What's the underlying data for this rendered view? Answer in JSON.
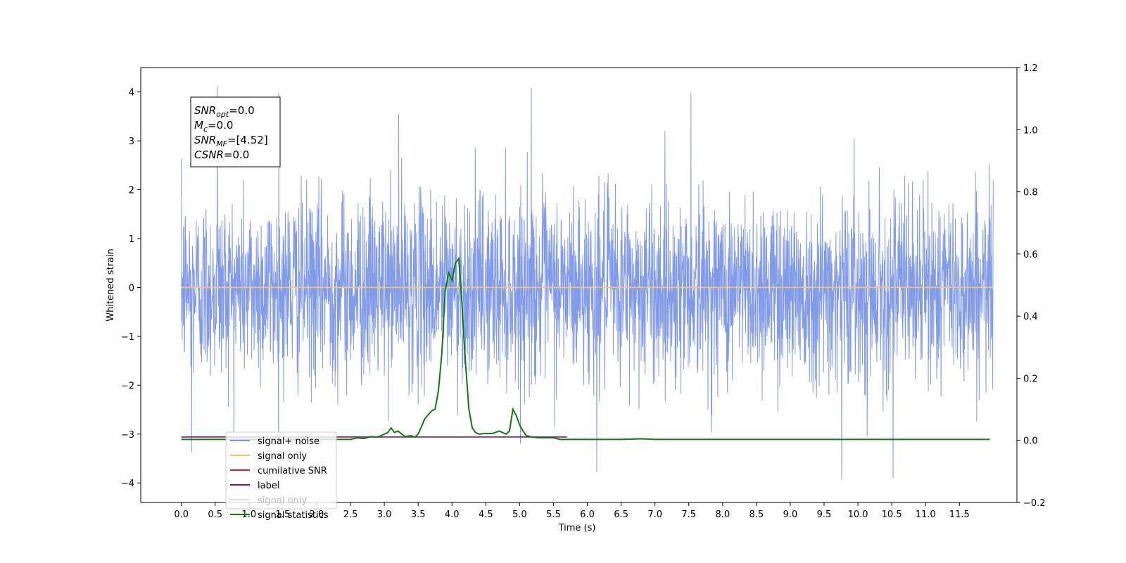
{
  "chart_data": {
    "type": "line",
    "xlabel": "Time (s)",
    "ylabel": "Whitened strain",
    "xlim": [
      -0.6,
      12.35
    ],
    "ylim": [
      -4.4,
      4.5
    ],
    "y2lim": [
      -0.2,
      1.2
    ],
    "x_ticks": [
      0.0,
      0.5,
      1.0,
      1.5,
      2.0,
      2.5,
      3.0,
      3.5,
      4.0,
      4.5,
      5.0,
      5.5,
      6.0,
      6.5,
      7.0,
      7.5,
      8.0,
      8.5,
      9.0,
      9.5,
      10.0,
      10.5,
      11.0,
      11.5
    ],
    "x_tick_labels": [
      "0.0",
      "0.5",
      "1.0",
      "1.5",
      "2.0",
      "2.5",
      "3.0",
      "3.5",
      "4.0",
      "4.5",
      "5.0",
      "5.5",
      "6.0",
      "6.5",
      "7.0",
      "7.5",
      "8.0",
      "8.5",
      "9.0",
      "9.5",
      "10.0",
      "10.5",
      "11.0",
      "11.5"
    ],
    "y_ticks": [
      -4,
      -3,
      -2,
      -1,
      0,
      1,
      2,
      3,
      4
    ],
    "y_tick_labels": [
      "−4",
      "−3",
      "−2",
      "−1",
      "0",
      "1",
      "2",
      "3",
      "4"
    ],
    "y2_ticks": [
      -0.2,
      0.0,
      0.2,
      0.4,
      0.6,
      0.8,
      1.0,
      1.2
    ],
    "y2_tick_labels": [
      "−0.2",
      "0.0",
      "0.2",
      "0.4",
      "0.6",
      "0.8",
      "1.0",
      "1.2"
    ],
    "grid": false,
    "legend_placement": "lower-left",
    "annotation": {
      "lines": [
        {
          "sym": "SNR",
          "sub": "opt",
          "text": "=0.0"
        },
        {
          "sym": "M",
          "sub": "c",
          "text": "=0.0"
        },
        {
          "sym": "SNR",
          "sub": "MF",
          "text": "=[4.52]"
        },
        {
          "sym": "CSNR",
          "sub": "",
          "text": "=0.0"
        }
      ]
    },
    "noise_approx": {
      "x_range": [
        0.0,
        12.0
      ],
      "mean": 0.0,
      "typical_band": [
        -2.2,
        2.3
      ],
      "extremes": [
        {
          "x": 0.53,
          "y": 4.12
        },
        {
          "x": 5.17,
          "y": 4.08
        },
        {
          "x": 9.76,
          "y": -3.93
        },
        {
          "x": 10.52,
          "y": -3.9
        },
        {
          "x": 6.14,
          "y": -3.78
        },
        {
          "x": 0.15,
          "y": -3.37
        },
        {
          "x": 1.44,
          "y": 3.98
        },
        {
          "x": 3.21,
          "y": 3.55
        },
        {
          "x": 7.53,
          "y": 3.98
        }
      ]
    },
    "series": [
      {
        "name": "signal+ noise",
        "axis": "left",
        "color": "#7b96e8"
      },
      {
        "name": "signal only",
        "axis": "left",
        "color": "#ffc266",
        "x": [
          0.0,
          12.0
        ],
        "y": [
          0.0,
          0.0
        ]
      },
      {
        "name": "cumilative SNR",
        "axis": "left",
        "color": "#e41a1c"
      },
      {
        "name": "label",
        "axis": "left",
        "color": "#7a1a7a",
        "x": [
          0.0,
          5.7
        ],
        "y": [
          -3.06,
          -3.06
        ]
      },
      {
        "name": "signal only",
        "axis": "left",
        "color": "#dddddd"
      },
      {
        "name": "signal statistics",
        "axis": "right",
        "color": "#117a11",
        "x": [
          0.0,
          2.5,
          2.6,
          2.7,
          2.8,
          2.9,
          3.0,
          3.05,
          3.1,
          3.15,
          3.2,
          3.3,
          3.4,
          3.45,
          3.5,
          3.6,
          3.7,
          3.75,
          3.8,
          3.85,
          3.9,
          3.95,
          4.0,
          4.05,
          4.1,
          4.13,
          4.2,
          4.25,
          4.3,
          4.35,
          4.4,
          4.5,
          4.6,
          4.7,
          4.8,
          4.85,
          4.9,
          4.95,
          5.0,
          5.05,
          5.1,
          5.2,
          5.3,
          5.4,
          5.5,
          5.6,
          5.8,
          6.0,
          6.5,
          6.8,
          7.0,
          7.5,
          8.0,
          8.5,
          9.0,
          11.95
        ],
        "y": [
          0.003,
          0.003,
          0.008,
          0.006,
          0.012,
          0.01,
          0.02,
          0.025,
          0.04,
          0.025,
          0.03,
          0.013,
          0.015,
          0.01,
          0.02,
          0.07,
          0.095,
          0.1,
          0.16,
          0.28,
          0.48,
          0.54,
          0.515,
          0.57,
          0.585,
          0.5,
          0.25,
          0.1,
          0.04,
          0.025,
          0.02,
          0.022,
          0.022,
          0.03,
          0.02,
          0.03,
          0.1,
          0.08,
          0.05,
          0.03,
          0.015,
          0.01,
          0.008,
          0.008,
          0.008,
          0.003,
          0.003,
          0.003,
          0.003,
          0.005,
          0.003,
          0.003,
          0.003,
          0.003,
          0.003,
          0.003
        ]
      }
    ]
  }
}
